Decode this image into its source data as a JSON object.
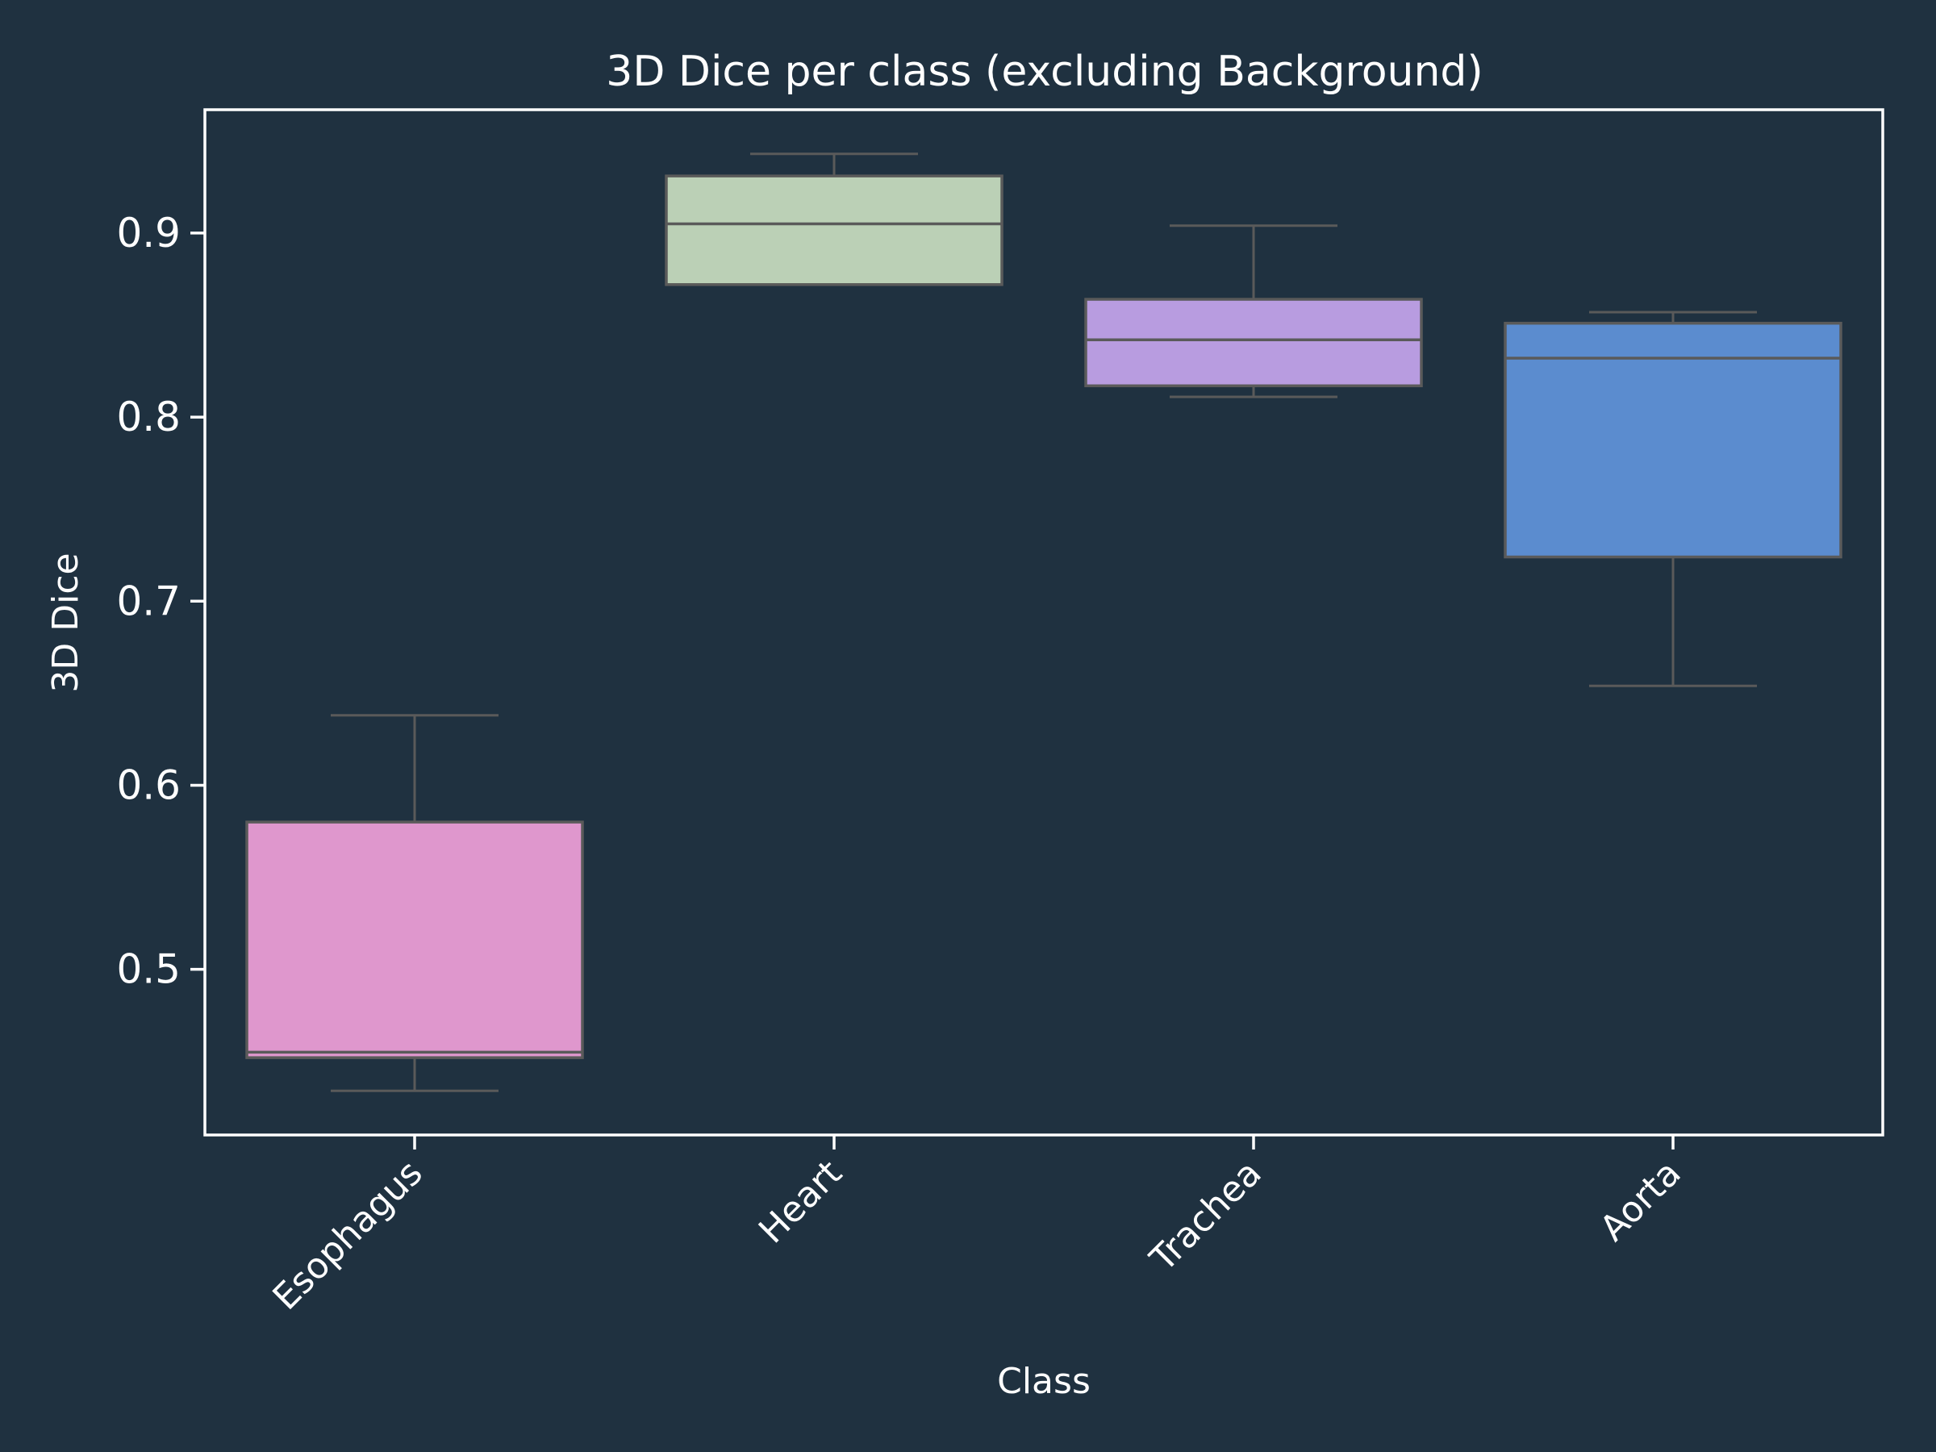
{
  "chart_data": {
    "type": "box",
    "title": "3D Dice per class (excluding Background)",
    "xlabel": "Class",
    "ylabel": "3D Dice",
    "ylim": [
      0.41,
      0.967
    ],
    "yticks": [
      0.5,
      0.6,
      0.7,
      0.8,
      0.9
    ],
    "ytick_labels": [
      "0.5",
      "0.6",
      "0.7",
      "0.8",
      "0.9"
    ],
    "categories": [
      "Esophagus",
      "Heart",
      "Trachea",
      "Aorta"
    ],
    "boxes": [
      {
        "category": "Esophagus",
        "whisker_low": 0.434,
        "q1": 0.452,
        "median": 0.455,
        "q3": 0.58,
        "whisker_high": 0.638,
        "color": "#df97cd"
      },
      {
        "category": "Heart",
        "whisker_low": 0.872,
        "q1": 0.872,
        "median": 0.905,
        "q3": 0.931,
        "whisker_high": 0.943,
        "color": "#bbd0b6"
      },
      {
        "category": "Trachea",
        "whisker_low": 0.811,
        "q1": 0.817,
        "median": 0.842,
        "q3": 0.864,
        "whisker_high": 0.904,
        "color": "#b89ce0"
      },
      {
        "category": "Aorta",
        "whisker_low": 0.654,
        "q1": 0.724,
        "median": 0.832,
        "q3": 0.851,
        "whisker_high": 0.857,
        "color": "#5b8ccf"
      }
    ],
    "grid": false,
    "colors": {
      "background": "#1f3140",
      "axes_frame": "#ffffff",
      "box_edge": "#5a5a5a",
      "text": "#ffffff"
    }
  }
}
